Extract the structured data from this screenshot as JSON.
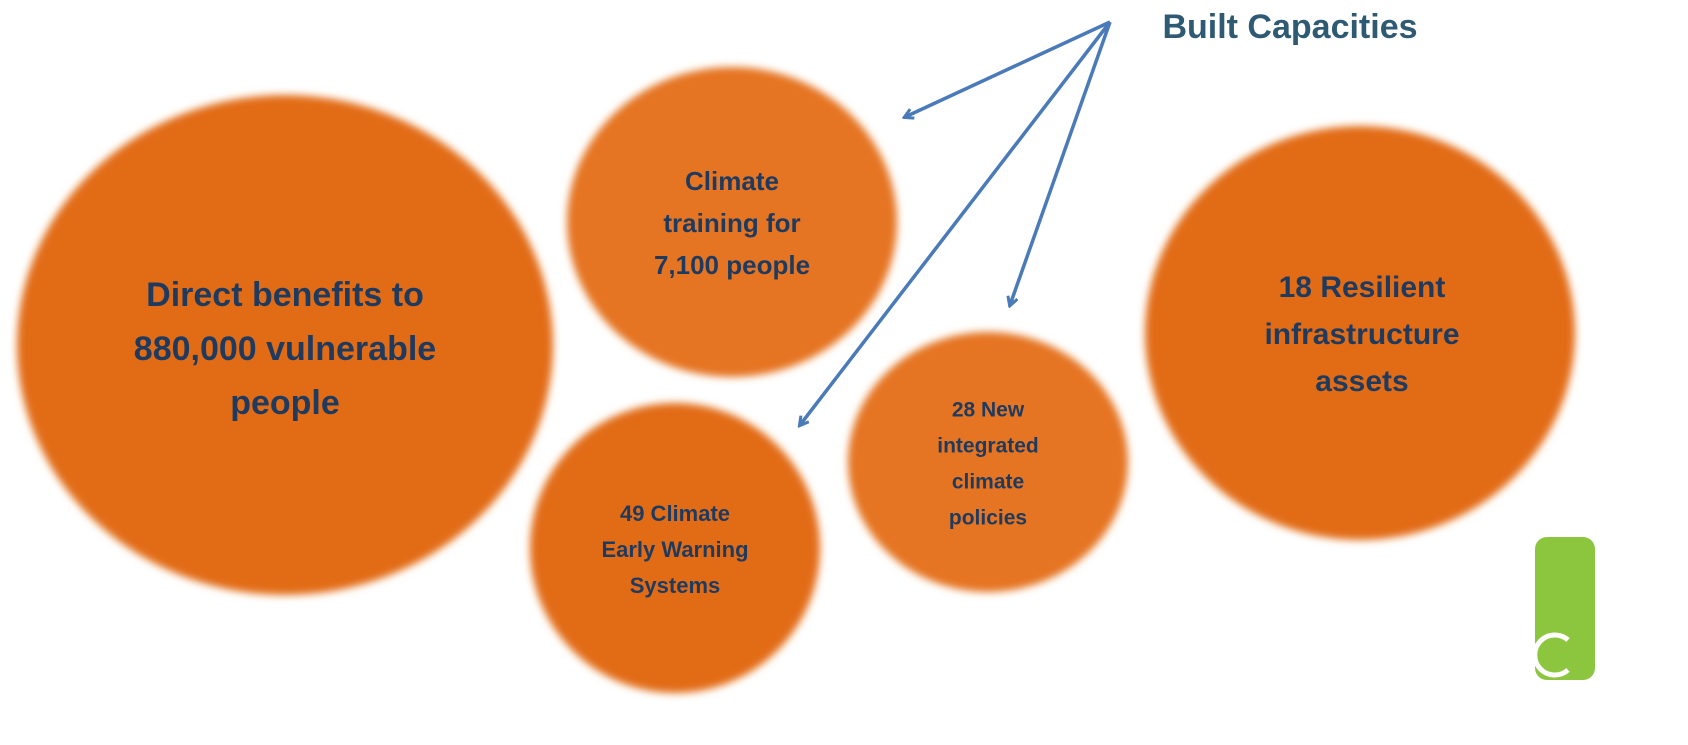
{
  "heading": "Built Capacities",
  "bubbles": [
    {
      "lines": [
        "Direct benefits to",
        "880,000 vulnerable",
        "people"
      ]
    },
    {
      "lines": [
        "Climate",
        "training for",
        "7,100 people"
      ]
    },
    {
      "lines": [
        "49 Climate",
        "Early Warning",
        "Systems"
      ]
    },
    {
      "lines": [
        "28 New",
        "integrated",
        "climate",
        "policies"
      ]
    },
    {
      "lines": [
        "18 Resilient",
        "infrastructure",
        "assets"
      ]
    }
  ]
}
